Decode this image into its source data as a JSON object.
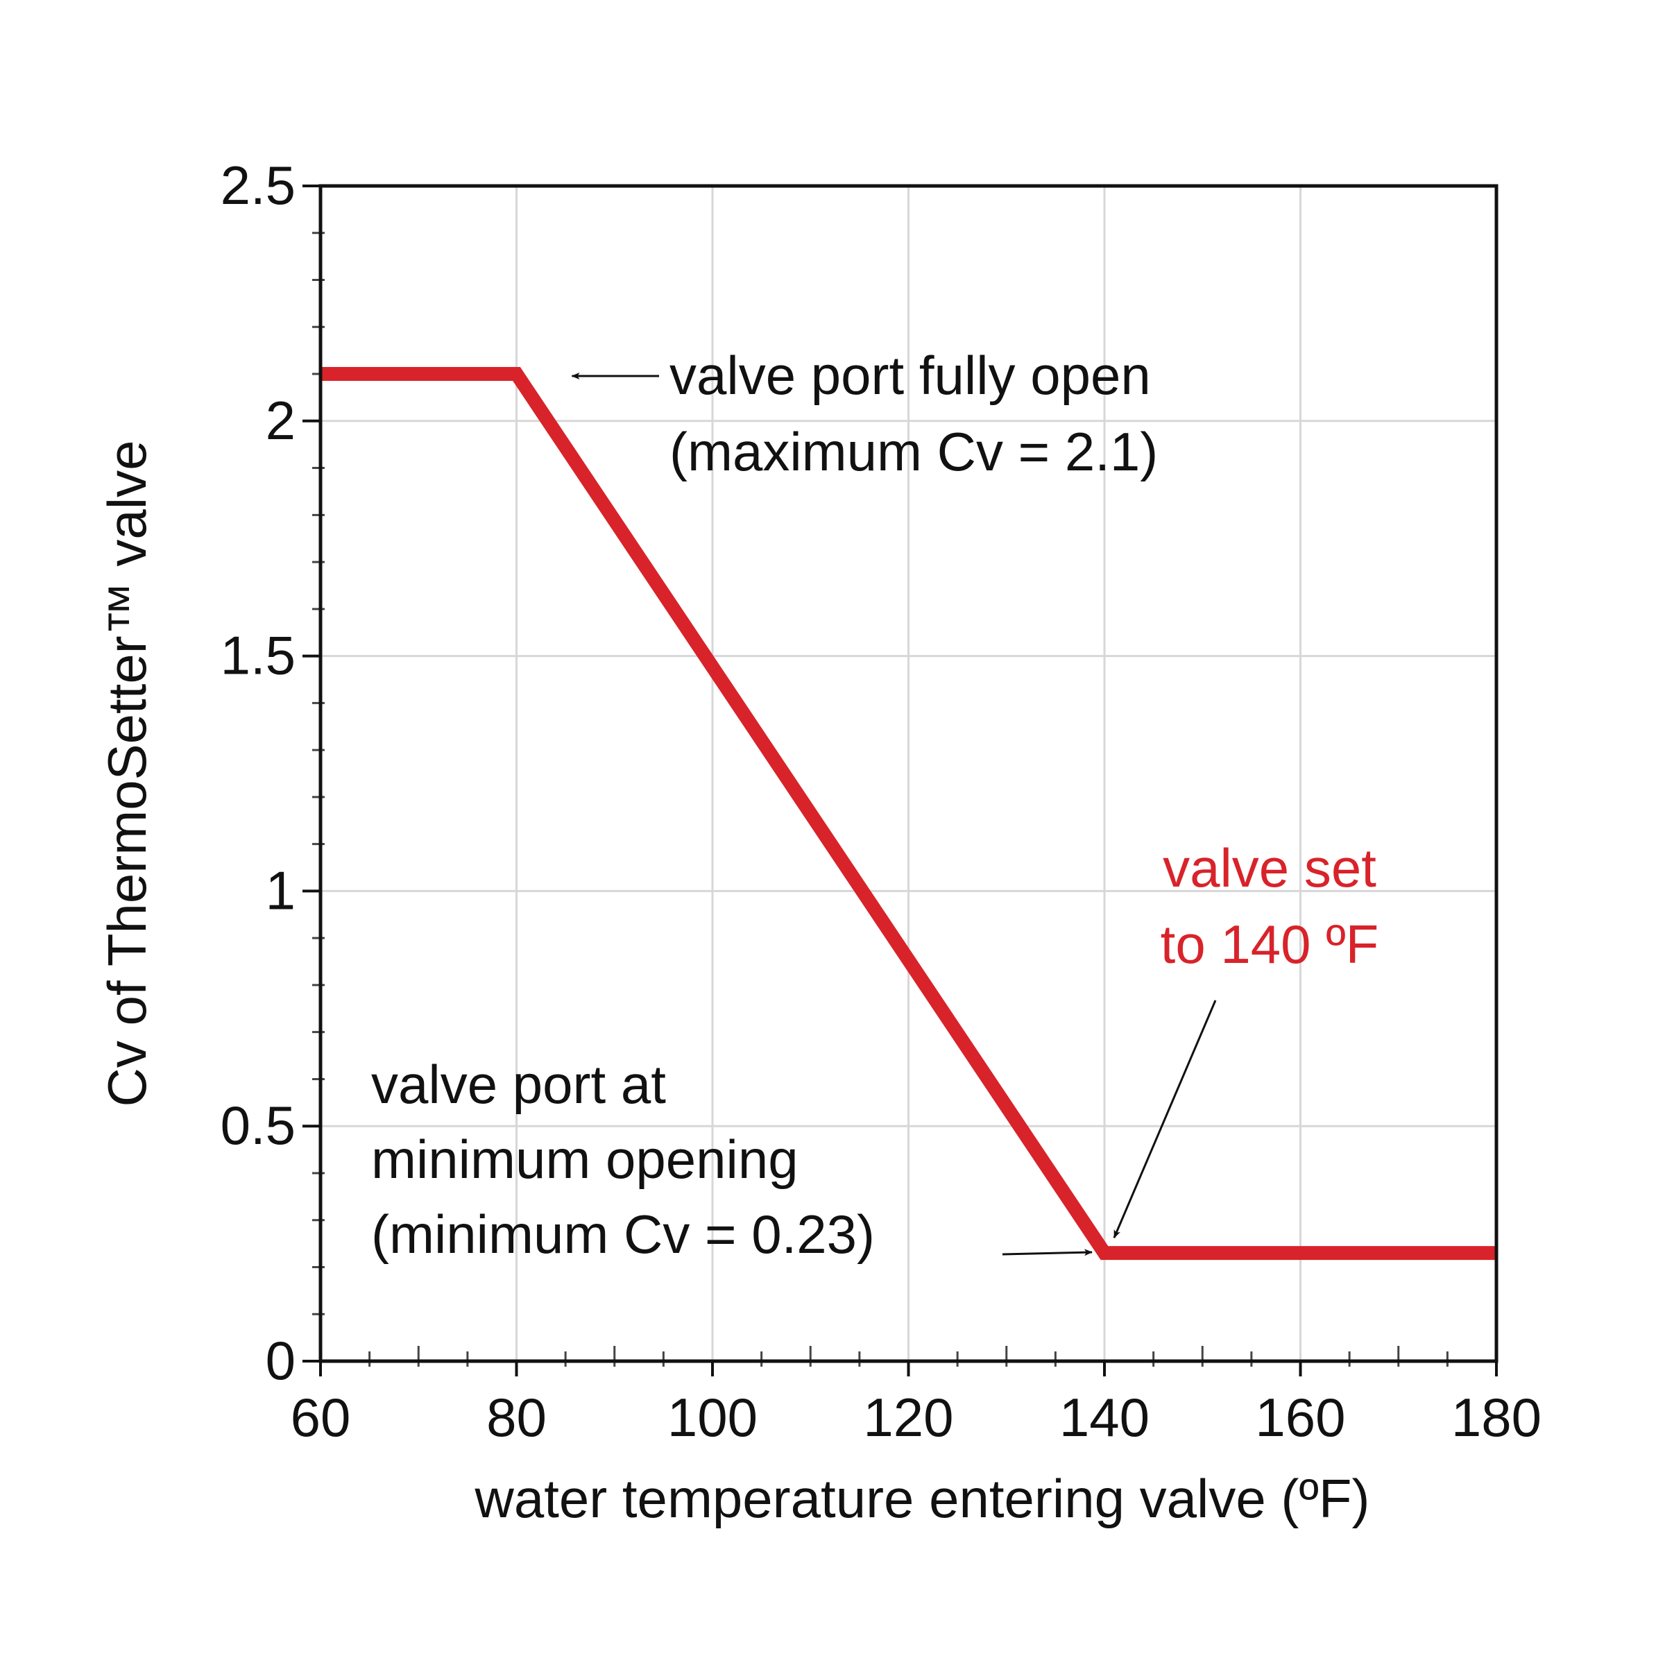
{
  "chart_data": {
    "type": "line",
    "title": "",
    "xlabel": "water temperature entering valve (ºF)",
    "ylabel": "Cv of ThermoSetter™ valve",
    "xlim": [
      60,
      180
    ],
    "ylim": [
      0,
      2.5
    ],
    "x_ticks": [
      60,
      80,
      100,
      120,
      140,
      160,
      180
    ],
    "x_tick_labels": [
      "60",
      "80",
      "100",
      "120",
      "140",
      "160",
      "180"
    ],
    "y_ticks": [
      0,
      0.5,
      1,
      1.5,
      2,
      2.5
    ],
    "y_tick_labels": [
      "0",
      "0.5",
      "1",
      "1.5",
      "2",
      "2.5"
    ],
    "grid": true,
    "series": [
      {
        "x": [
          60,
          80,
          140,
          180
        ],
        "y": [
          2.1,
          2.1,
          0.23,
          0.23
        ],
        "color": "#d8232a"
      }
    ],
    "annotations": [
      {
        "lines": [
          "valve port fully open",
          "(maximum Cv = 2.1)"
        ],
        "color": "#111111",
        "points_to": [
          80,
          2.1
        ]
      },
      {
        "lines": [
          "valve port at",
          "minimum opening",
          "(minimum Cv = 0.23)"
        ],
        "color": "#111111",
        "points_to": [
          140,
          0.23
        ]
      },
      {
        "lines": [
          "valve set",
          "to 140 ºF"
        ],
        "color": "#d8232a",
        "points_to": [
          140,
          0.23
        ]
      }
    ]
  }
}
